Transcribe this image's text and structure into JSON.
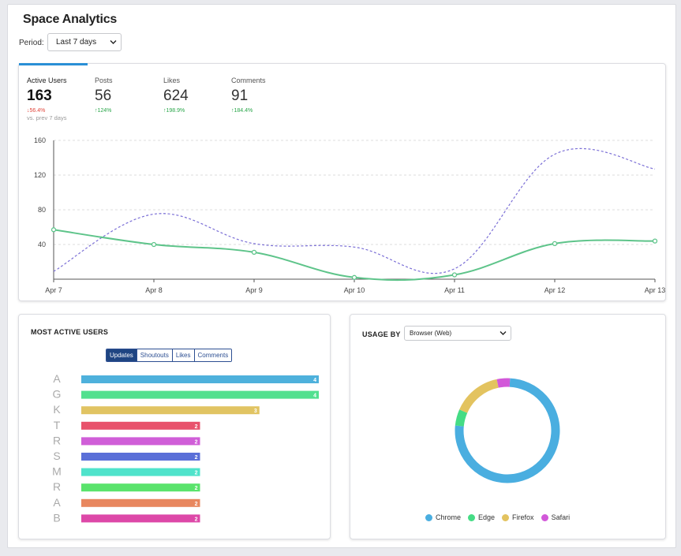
{
  "app": {
    "title": "Space Analytics"
  },
  "period": {
    "label": "Period:",
    "selected": "Last 7 days"
  },
  "kpis": [
    {
      "label": "Active Users",
      "value": "163",
      "delta": "↓56.4%",
      "direction": "down",
      "sub": "vs. prev 7 days"
    },
    {
      "label": "Posts",
      "value": "56",
      "delta": "↑124%",
      "direction": "up",
      "sub": ""
    },
    {
      "label": "Likes",
      "value": "624",
      "delta": "↑198.9%",
      "direction": "up",
      "sub": ""
    },
    {
      "label": "Comments",
      "value": "91",
      "delta": "↑184.4%",
      "direction": "up",
      "sub": ""
    }
  ],
  "most_active": {
    "title": "MOST ACTIVE USERS",
    "tabs": [
      "Updates",
      "Shoutouts",
      "Likes",
      "Comments"
    ],
    "active_tab": "Updates"
  },
  "usage": {
    "title": "USAGE BY",
    "selected": "Browser (Web)"
  },
  "colors": {
    "active_users_line": "#5ec48a",
    "previous_period_line": "#7b6fd6",
    "accent": "#2a8fd6",
    "segment_active": "#1f4582"
  },
  "chart_data": [
    {
      "type": "line",
      "x": [
        "Apr 7",
        "Apr 8",
        "Apr 9",
        "Apr 10",
        "Apr 11",
        "Apr 12",
        "Apr 13"
      ],
      "ylim": [
        0,
        160
      ],
      "yticks": [
        40,
        80,
        120,
        160
      ],
      "grid": true,
      "series": [
        {
          "values": [
            57,
            40,
            31,
            2,
            5,
            41,
            44
          ],
          "style": "solid",
          "markers": true
        },
        {
          "values": [
            9,
            75,
            41,
            37,
            12,
            144,
            127
          ],
          "style": "dashed",
          "markers": false
        }
      ]
    },
    {
      "type": "bar",
      "orientation": "horizontal",
      "categories": [
        "A",
        "G",
        "K",
        "T",
        "R",
        "S",
        "M",
        "R",
        "A",
        "B"
      ],
      "values": [
        4,
        4,
        3,
        2,
        2,
        2,
        2,
        2,
        2,
        2
      ],
      "colors": [
        "#4eb1dc",
        "#52e08f",
        "#e1c463",
        "#e8526c",
        "#d05ed8",
        "#5a6fd8",
        "#4fe3cb",
        "#5ae36c",
        "#e8875f",
        "#dd48a8"
      ]
    },
    {
      "type": "pie",
      "donut": true,
      "categories": [
        "Chrome",
        "Edge",
        "Firefox",
        "Safari"
      ],
      "values": [
        75,
        5,
        15,
        4
      ],
      "colors": [
        "#4aaee0",
        "#45dc85",
        "#e3c35f",
        "#d258d9"
      ]
    }
  ]
}
